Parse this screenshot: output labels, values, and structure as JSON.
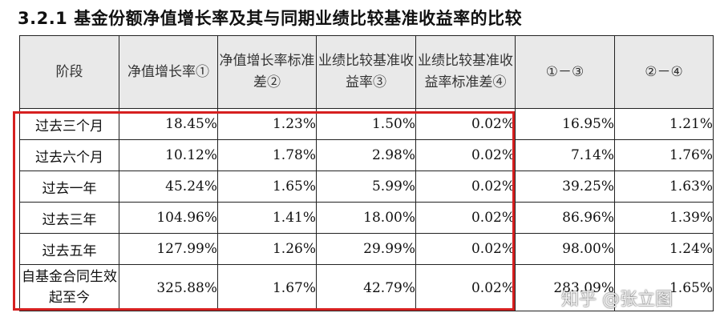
{
  "title": "3.2.1 基金份额净值增长率及其与同期业绩比较基准收益率的比较",
  "table": {
    "headers": [
      "阶段",
      "净值增长率①",
      "净值增长率标准差②",
      "业绩比较基准收益率③",
      "业绩比较基准收益率标准差④",
      "①－③",
      "②－④"
    ],
    "rows": [
      {
        "stage": "过去三个月",
        "values": [
          "18.45%",
          "1.23%",
          "1.50%",
          "0.02%",
          "16.95%",
          "1.21%"
        ]
      },
      {
        "stage": "过去六个月",
        "values": [
          "10.12%",
          "1.78%",
          "2.98%",
          "0.02%",
          "7.14%",
          "1.76%"
        ]
      },
      {
        "stage": "过去一年",
        "values": [
          "45.24%",
          "1.65%",
          "5.99%",
          "0.02%",
          "39.25%",
          "1.63%"
        ]
      },
      {
        "stage": "过去三年",
        "values": [
          "104.96%",
          "1.41%",
          "18.00%",
          "0.02%",
          "86.96%",
          "1.39%"
        ]
      },
      {
        "stage": "过去五年",
        "values": [
          "127.99%",
          "1.26%",
          "29.99%",
          "0.02%",
          "98.00%",
          "1.24%"
        ]
      },
      {
        "stage": "自基金合同生效起至今",
        "values": [
          "325.88%",
          "1.67%",
          "42.79%",
          "0.02%",
          "283.09%",
          "1.65%"
        ]
      }
    ]
  },
  "highlight_color": "#d62020",
  "watermark": "知乎 @张立图"
}
